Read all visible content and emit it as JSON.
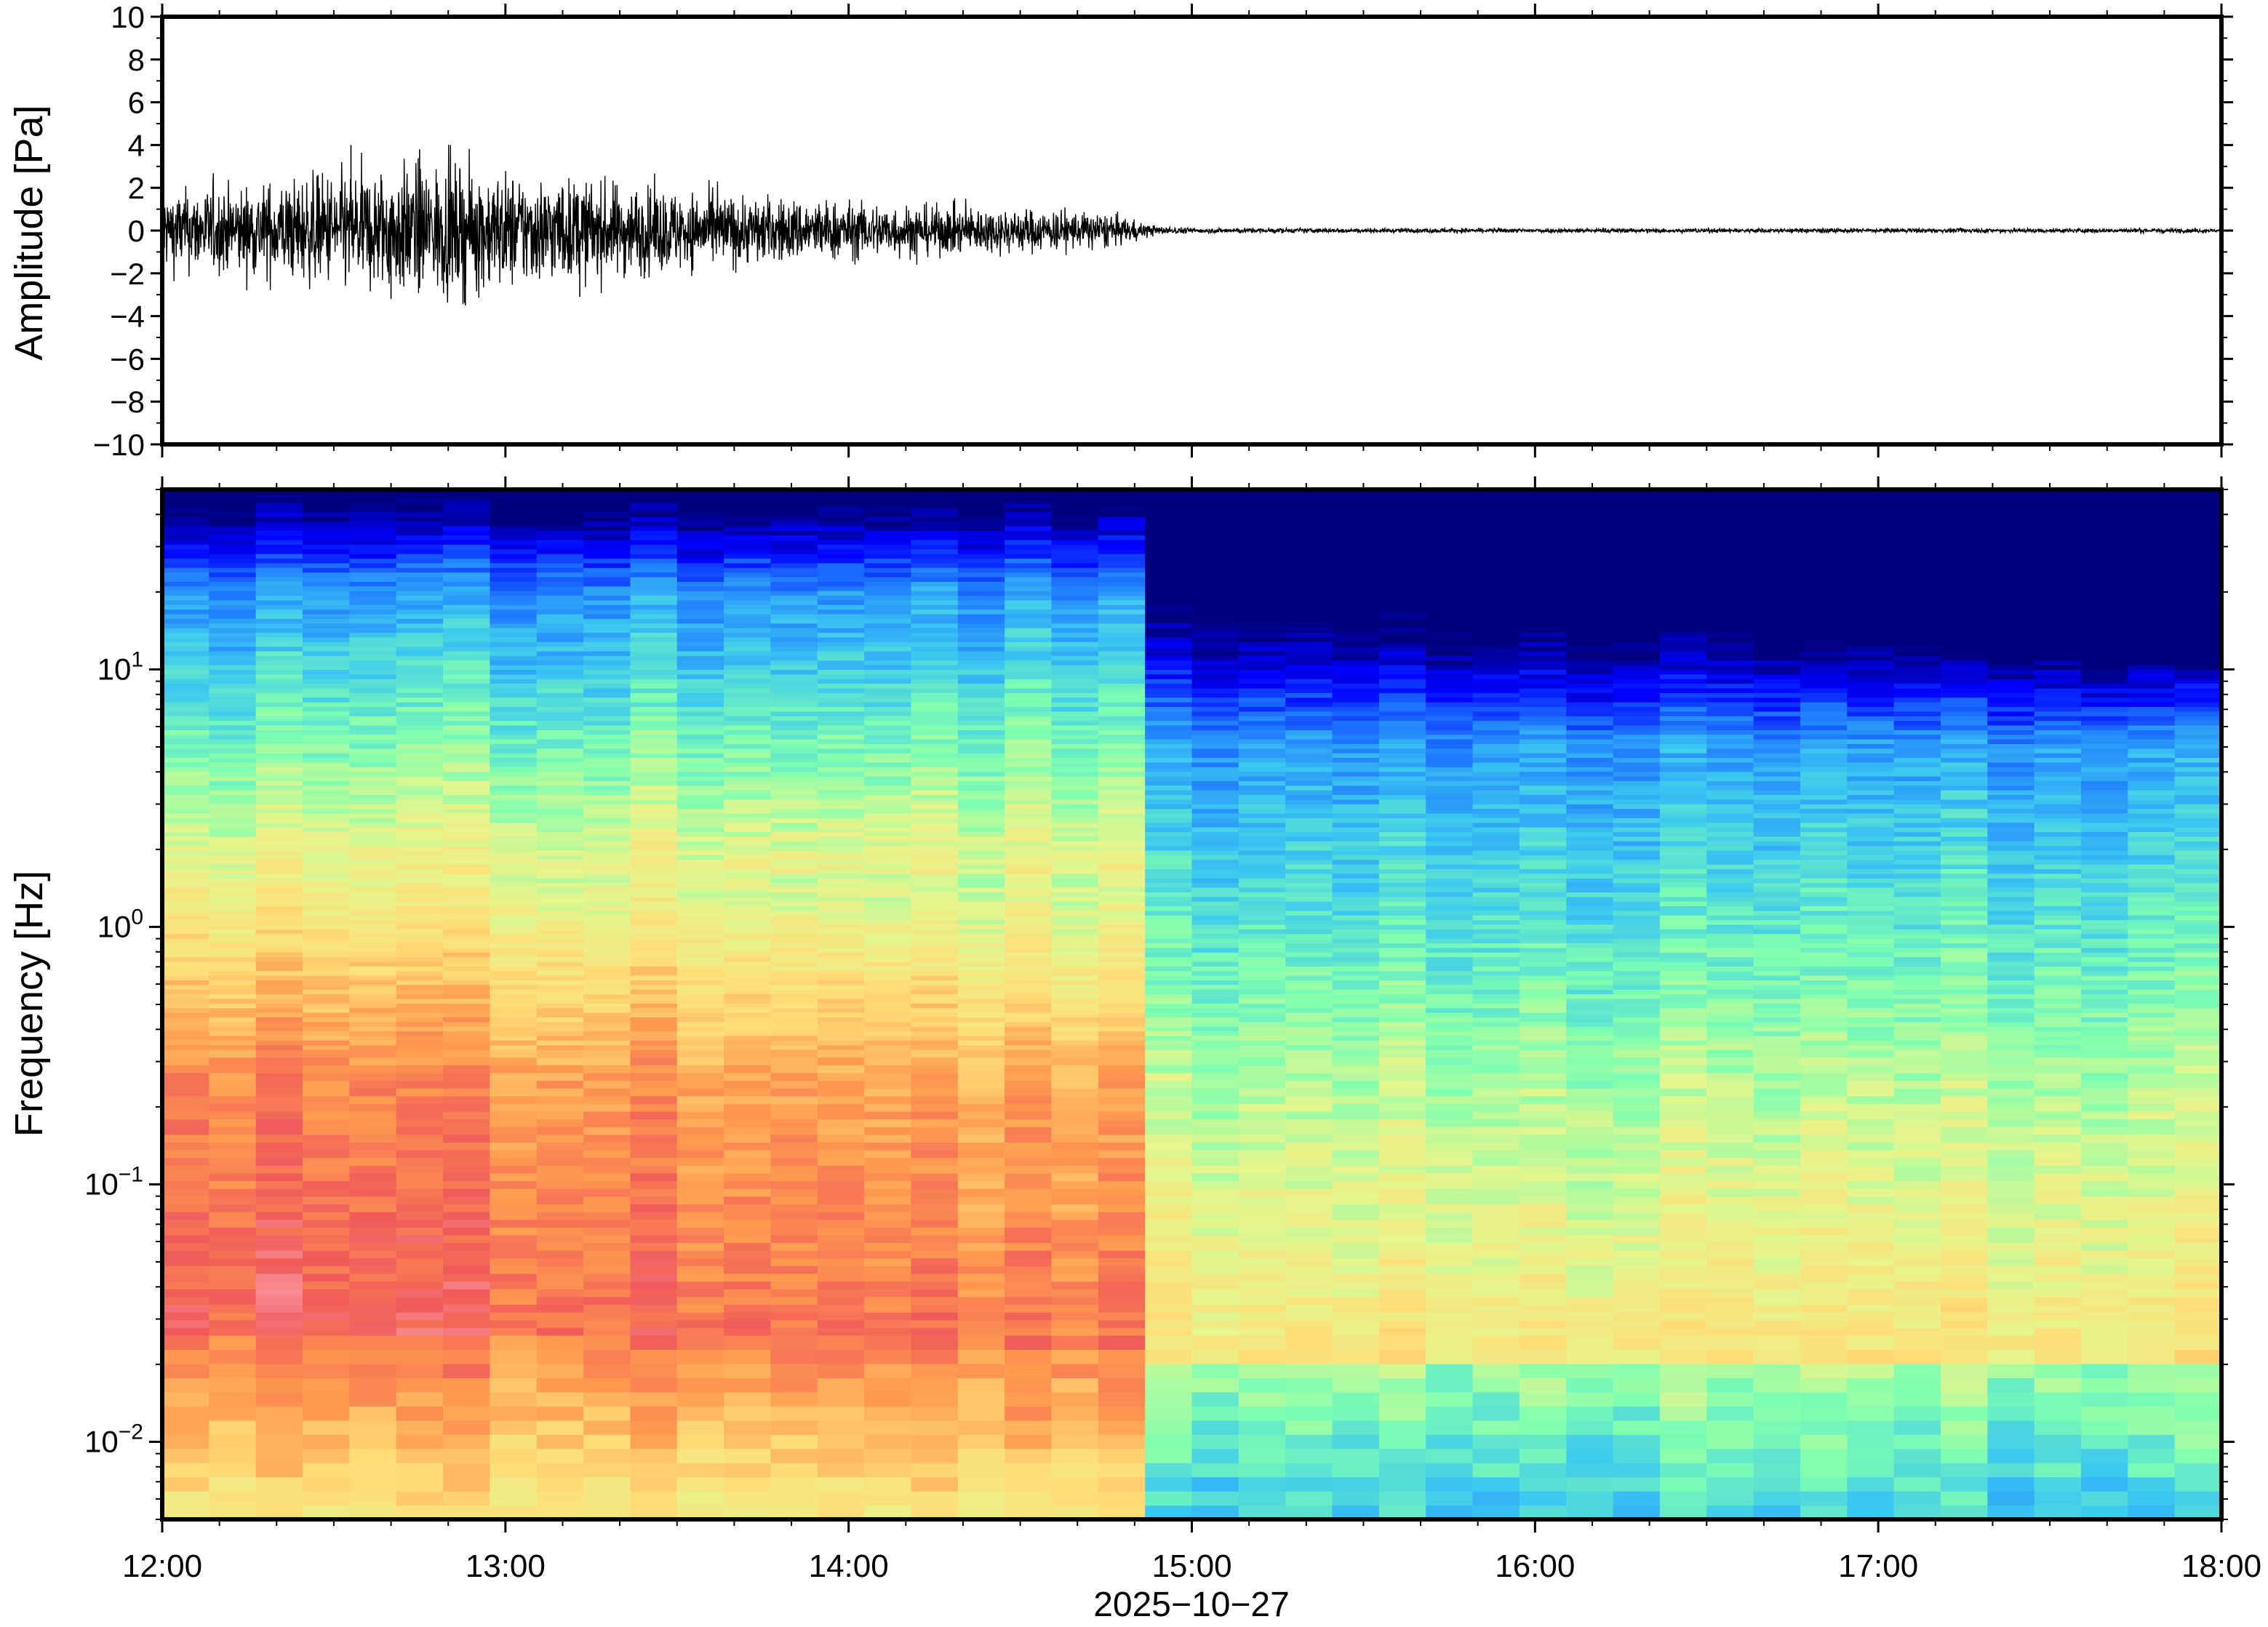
{
  "chart_data": [
    {
      "type": "line",
      "panel": "waveform",
      "ylabel": "Amplitude [Pa]",
      "ylim": [
        -10,
        10
      ],
      "yticks": [
        10,
        8,
        6,
        4,
        2,
        0,
        -2,
        -4,
        -6,
        -8,
        -10
      ],
      "ytick_labels": [
        "10",
        "8",
        "6",
        "4",
        "2",
        "0",
        "−2",
        "−4",
        "−6",
        "−8",
        "−10"
      ],
      "xlim": [
        "12:00",
        "18:00"
      ],
      "envelope": {
        "time_hours": [
          12.0,
          12.25,
          12.5,
          12.75,
          13.0,
          13.25,
          13.5,
          13.75,
          14.0,
          14.25,
          14.5,
          14.75,
          14.9,
          15.0,
          15.5,
          16.0,
          16.5,
          17.0,
          17.5,
          18.0
        ],
        "amplitude_pa": [
          1.8,
          2.0,
          2.6,
          3.0,
          2.6,
          2.2,
          1.8,
          1.5,
          1.3,
          1.1,
          1.0,
          0.8,
          0.2,
          0.12,
          0.1,
          0.1,
          0.1,
          0.1,
          0.1,
          0.1
        ]
      },
      "peaks": [
        {
          "time": "12:33",
          "amplitude_pa": 4.0
        },
        {
          "time": "12:45",
          "amplitude_pa": 3.8
        },
        {
          "time": "12:53",
          "amplitude_pa": -3.5
        },
        {
          "time": "13:13",
          "amplitude_pa": -3.1
        },
        {
          "time": "12:40",
          "amplitude_pa": -3.2
        }
      ]
    },
    {
      "type": "heatmap",
      "panel": "spectrogram",
      "ylabel": "Frequency [Hz]",
      "yscale": "log",
      "ylim": [
        0.005,
        50
      ],
      "yticks": [
        {
          "base": "10",
          "exp": "1",
          "value": 10
        },
        {
          "base": "10",
          "exp": "0",
          "value": 1
        },
        {
          "base": "10",
          "exp": "−1",
          "value": 0.1
        },
        {
          "base": "10",
          "exp": "−2",
          "value": 0.01
        }
      ],
      "xlim": [
        "12:00",
        "18:00"
      ],
      "colormap": "jet",
      "note_regime_change_time": "14:53"
    }
  ],
  "x_axis": {
    "tick_labels": [
      "12:00",
      "13:00",
      "14:00",
      "15:00",
      "16:00",
      "17:00",
      "18:00"
    ],
    "date_label": "2025−10−27"
  },
  "colors": {
    "waveform": "#000000",
    "frame": "#000000",
    "colormap_stops": [
      "#00007f",
      "#0000ff",
      "#1e78ff",
      "#3cc8f0",
      "#7fffb0",
      "#e6f58c",
      "#ffdc78",
      "#ff9a50",
      "#f05a5a",
      "#ffb4c0"
    ]
  }
}
